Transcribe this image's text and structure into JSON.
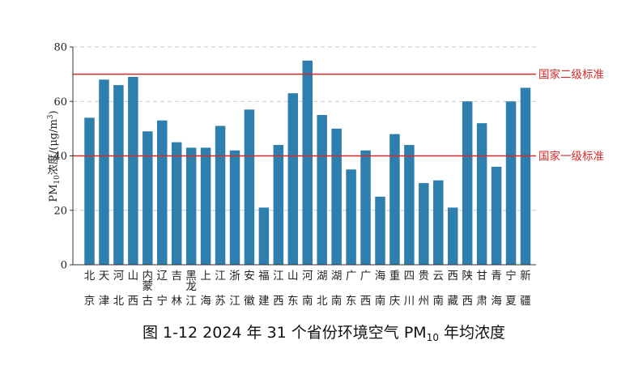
{
  "chart_data": {
    "type": "bar",
    "title": "图 1-12  2024 年 31 个省份环境空气 PM₁₀ 年均浓度",
    "title_parts": {
      "pre": "图 1-12  2024 年 31 个省份环境空气 PM",
      "sub": "10",
      "post": " 年均浓度"
    },
    "ylabel": "PM₁₀浓度/(μg/m³)",
    "ylabel_parts": {
      "pre": "PM",
      "sub": "10",
      "mid": "浓度/(μg/m",
      "sup": "3",
      "post": ")"
    },
    "xlabel": "",
    "ylim": [
      0,
      80
    ],
    "yticks": [
      0,
      20,
      40,
      60,
      80
    ],
    "grid": "horizontal-dashed",
    "bar_color": "#2e7fae",
    "categories": [
      "北京",
      "天津",
      "河北",
      "山西",
      "内蒙古",
      "辽宁",
      "吉林",
      "黑龙江",
      "上海",
      "江苏",
      "浙江",
      "安徽",
      "福建",
      "江西",
      "山东",
      "河南",
      "湖北",
      "湖南",
      "广东",
      "广西",
      "海南",
      "重庆",
      "四川",
      "贵州",
      "云南",
      "西藏",
      "陕西",
      "甘肃",
      "青海",
      "宁夏",
      "新疆"
    ],
    "category_lines": [
      [
        "北",
        "京"
      ],
      [
        "天",
        "津"
      ],
      [
        "河",
        "北"
      ],
      [
        "山",
        "西"
      ],
      [
        "内",
        "蒙",
        "古"
      ],
      [
        "辽",
        "宁"
      ],
      [
        "吉",
        "林"
      ],
      [
        "黑",
        "龙",
        "江"
      ],
      [
        "上",
        "海"
      ],
      [
        "江",
        "苏"
      ],
      [
        "浙",
        "江"
      ],
      [
        "安",
        "徽"
      ],
      [
        "福",
        "建"
      ],
      [
        "江",
        "西"
      ],
      [
        "山",
        "东"
      ],
      [
        "河",
        "南"
      ],
      [
        "湖",
        "北"
      ],
      [
        "湖",
        "南"
      ],
      [
        "广",
        "东"
      ],
      [
        "广",
        "西"
      ],
      [
        "海",
        "南"
      ],
      [
        "重",
        "庆"
      ],
      [
        "四",
        "川"
      ],
      [
        "贵",
        "州"
      ],
      [
        "云",
        "南"
      ],
      [
        "西",
        "藏"
      ],
      [
        "陕",
        "西"
      ],
      [
        "甘",
        "肃"
      ],
      [
        "青",
        "海"
      ],
      [
        "宁",
        "夏"
      ],
      [
        "新",
        "疆"
      ]
    ],
    "values": [
      54,
      68,
      66,
      69,
      49,
      53,
      45,
      43,
      43,
      51,
      42,
      57,
      21,
      44,
      63,
      75,
      55,
      50,
      35,
      42,
      25,
      48,
      44,
      30,
      31,
      21,
      60,
      52,
      36,
      60,
      65
    ],
    "reference_lines": [
      {
        "value": 70,
        "label": "国家二级标准",
        "color": "#d42a2a"
      },
      {
        "value": 40,
        "label": "国家一级标准",
        "color": "#d42a2a"
      }
    ]
  }
}
